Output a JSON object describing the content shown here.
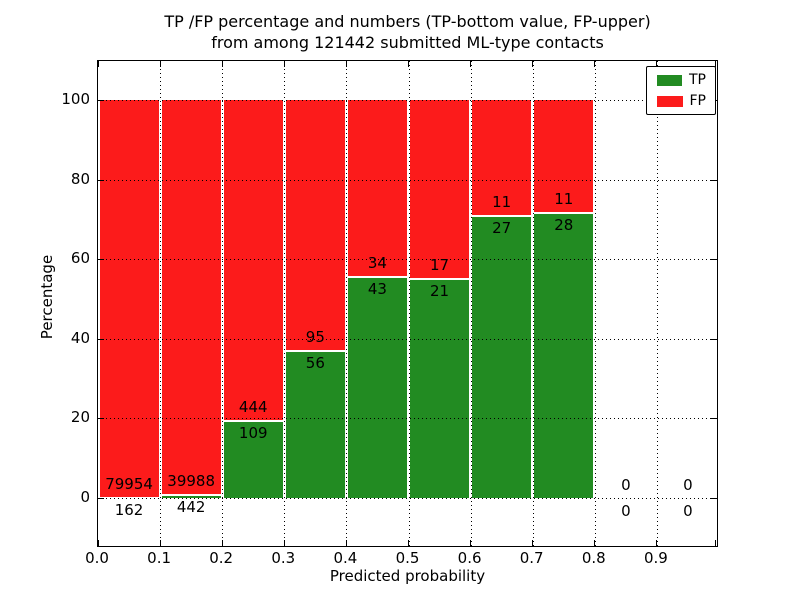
{
  "title": {
    "line1": "TP /FP percentage and numbers (TP-bottom value, FP-upper)",
    "line2": "from among 121442 submitted ML-type contacts"
  },
  "axes": {
    "xlabel": "Predicted probability",
    "ylabel": "Percentage"
  },
  "legend": {
    "items": [
      {
        "label": "TP",
        "color": "#228b22"
      },
      {
        "label": "FP",
        "color": "#fc1b1b"
      }
    ]
  },
  "colors": {
    "tp": "#228b22",
    "fp": "#fc1b1b",
    "grid": "#000000",
    "bar_edge": "#ffffff"
  },
  "chart_data": {
    "type": "bar",
    "stacked": true,
    "normalized_to_percent": true,
    "total_contacts": 121442,
    "bin_width": 0.1,
    "bin_starts": [
      0.0,
      0.1,
      0.2,
      0.3,
      0.4,
      0.5,
      0.6,
      0.7,
      0.8,
      0.9
    ],
    "series": [
      {
        "name": "TP",
        "counts": [
          162,
          442,
          109,
          56,
          43,
          21,
          27,
          28,
          0,
          0
        ]
      },
      {
        "name": "FP",
        "counts": [
          79954,
          39988,
          444,
          95,
          34,
          17,
          11,
          11,
          0,
          0
        ]
      }
    ],
    "tp_percent_by_bin": [
      0.2,
      1.09,
      19.71,
      37.09,
      55.84,
      55.26,
      71.05,
      71.79,
      0,
      0
    ],
    "xticks": [
      "0.0",
      "0.1",
      "0.2",
      "0.3",
      "0.4",
      "0.5",
      "0.6",
      "0.7",
      "0.8",
      "0.9"
    ],
    "yticks": [
      "0",
      "20",
      "40",
      "60",
      "80",
      "100"
    ],
    "xlim": [
      0.0,
      1.0
    ],
    "ylim": [
      -12.5,
      110
    ],
    "grid": "dotted",
    "legend_position": "upper right"
  }
}
